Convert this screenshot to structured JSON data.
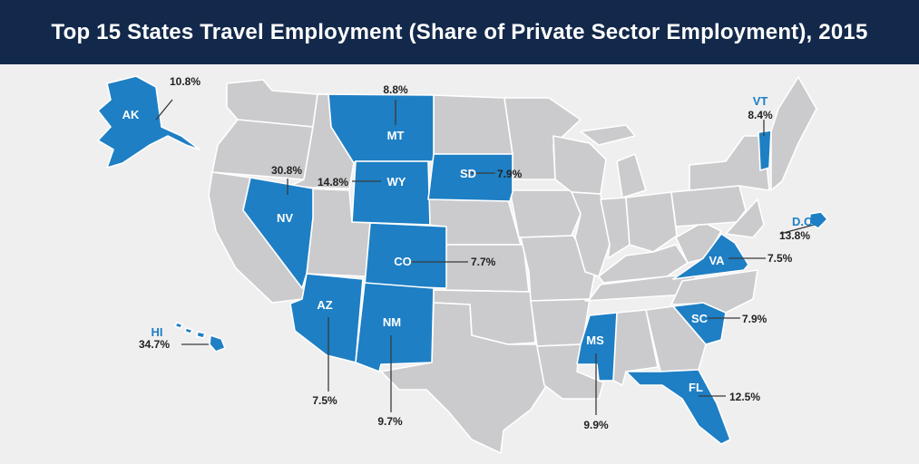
{
  "title": "Top 15 States Travel Employment (Share of Private Sector Employment), 2015",
  "colors": {
    "header_bg": "#13294b",
    "highlight": "#1e7fc4",
    "base_state": "#cbcbcd",
    "background": "#efeff0"
  },
  "states": [
    {
      "code": "AK",
      "value": "10.8%"
    },
    {
      "code": "MT",
      "value": "8.8%"
    },
    {
      "code": "VT",
      "value": "8.4%"
    },
    {
      "code": "NV",
      "value": "30.8%"
    },
    {
      "code": "WY",
      "value": "14.8%"
    },
    {
      "code": "SD",
      "value": "7.9%"
    },
    {
      "code": "D.C.",
      "value": "13.8%"
    },
    {
      "code": "CO",
      "value": "7.7%"
    },
    {
      "code": "VA",
      "value": "7.5%"
    },
    {
      "code": "AZ",
      "value": "7.5%"
    },
    {
      "code": "NM",
      "value": "9.7%"
    },
    {
      "code": "SC",
      "value": "7.9%"
    },
    {
      "code": "HI",
      "value": "34.7%"
    },
    {
      "code": "MS",
      "value": "9.9%"
    },
    {
      "code": "FL",
      "value": "12.5%"
    }
  ]
}
